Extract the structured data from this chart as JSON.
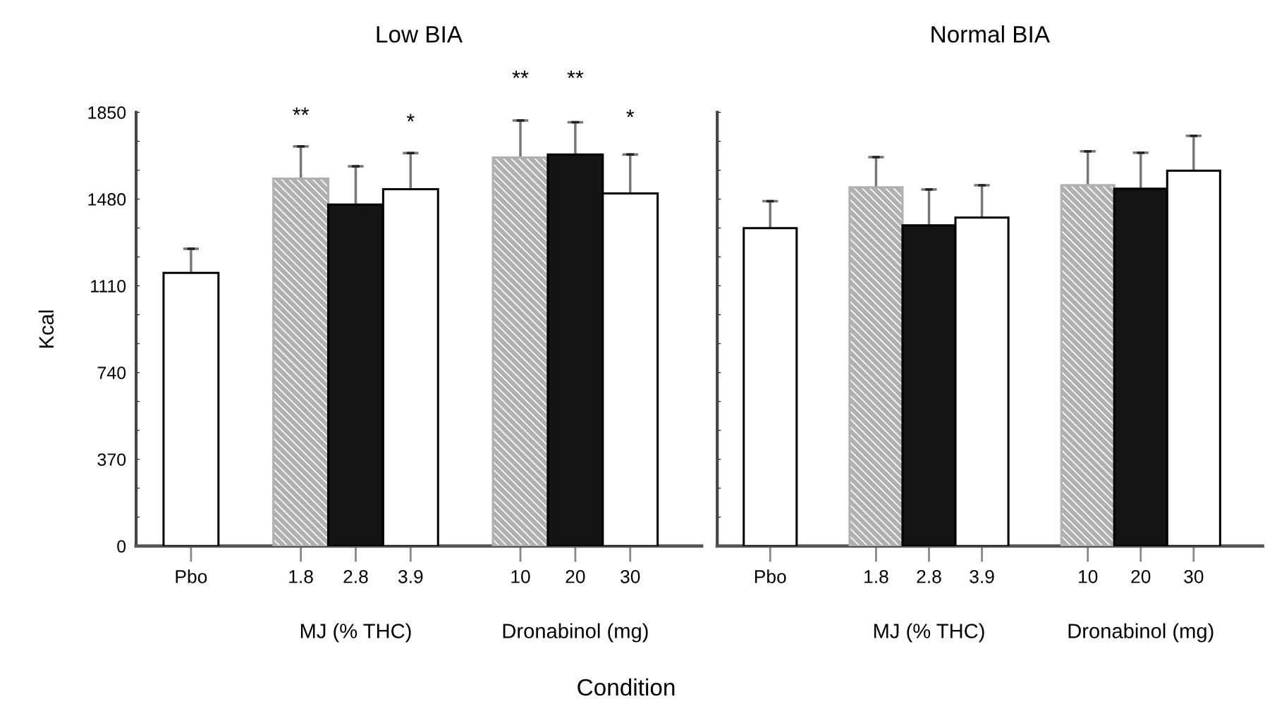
{
  "chart_data": [
    {
      "type": "bar",
      "title": "Low BIA",
      "ylabel": "Kcal",
      "xlabel": "Condition",
      "categories": [
        "Pbo",
        null,
        "1.8",
        "2.8",
        "3.9",
        null,
        "10",
        "20",
        "30"
      ],
      "values": [
        1165,
        null,
        1567,
        1457,
        1522,
        null,
        1657,
        1670,
        1504
      ],
      "errors": [
        103,
        null,
        138,
        163,
        154,
        null,
        158,
        138,
        166
      ],
      "colors": [
        "#ffffff",
        null,
        "#b0b0b0",
        "#141414",
        "#ffffff",
        null,
        "#b0b0b0",
        "#141414",
        "#ffffff"
      ],
      "ylim": [
        0,
        1850
      ],
      "yticks": [
        0,
        {
          "value": 123.3,
          "label": null
        },
        {
          "value": 246.7,
          "label": null
        },
        370,
        {
          "value": 493.3,
          "label": null
        },
        {
          "value": 616.7,
          "label": null
        },
        740,
        {
          "value": 863.3,
          "label": null
        },
        {
          "value": 986.7,
          "label": null
        },
        1110,
        {
          "value": 1233.3,
          "label": null
        },
        {
          "value": 1356.7,
          "label": null
        },
        1480,
        {
          "value": 1603.3,
          "label": null
        },
        {
          "value": 1726.7,
          "label": null
        },
        1850
      ],
      "annotations": [
        "**",
        "*",
        "**",
        "**",
        "*",
        "MJ (% THC)",
        "Dronabinol (mg)"
      ],
      "grid": false,
      "legend": false
    },
    {
      "type": "bar",
      "title": "Normal BIA",
      "categories": [
        "Pbo",
        null,
        "1.8",
        "2.8",
        "3.9",
        null,
        "10",
        "20",
        "30"
      ],
      "values": [
        1356,
        null,
        1530,
        1368,
        1401,
        null,
        1539,
        1524,
        1601
      ],
      "errors": [
        115,
        null,
        129,
        153,
        138,
        null,
        145,
        154,
        149
      ],
      "colors": [
        "#ffffff",
        null,
        "#b0b0b0",
        "#141414",
        "#ffffff",
        null,
        "#b0b0b0",
        "#141414",
        "#ffffff"
      ],
      "ylim": [
        0,
        1850
      ],
      "yticks": [
        0,
        {
          "value": 123.3,
          "label": null
        },
        {
          "value": 246.7,
          "label": null
        },
        370,
        {
          "value": 493.3,
          "label": null
        },
        {
          "value": 616.7,
          "label": null
        },
        740,
        {
          "value": 863.3,
          "label": null
        },
        {
          "value": 986.7,
          "label": null
        },
        1110,
        {
          "value": 1233.3,
          "label": null
        },
        {
          "value": 1356.7,
          "label": null
        },
        1480,
        {
          "value": 1603.3,
          "label": null
        },
        {
          "value": 1726.7,
          "label": null
        },
        1850
      ],
      "tick_labels": "x",
      "annotations": [
        "MJ (% THC)",
        "Dronabinol (mg)"
      ],
      "grid": false,
      "legend": false
    }
  ]
}
